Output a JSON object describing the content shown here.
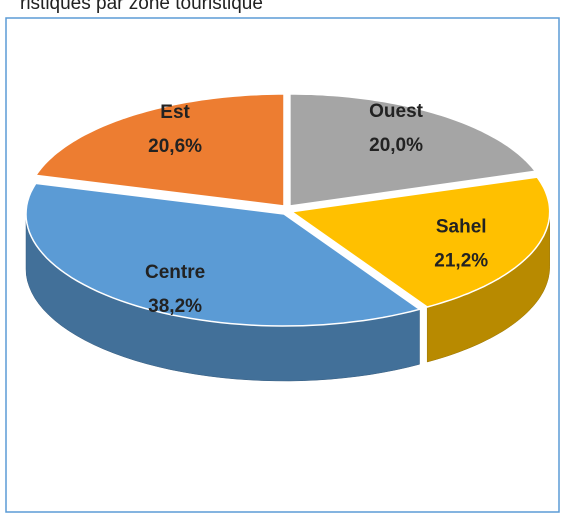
{
  "chart_data": {
    "type": "pie",
    "title": "ristiques par zone touristique",
    "categories": [
      "Ouest",
      "Sahel",
      "Centre",
      "Est"
    ],
    "values": [
      20.0,
      21.2,
      38.2,
      20.6
    ],
    "value_labels": [
      "20,0%",
      "21,2%",
      "38,2%",
      "20,6%"
    ],
    "colors": [
      "#a5a5a5",
      "#ffc000",
      "#5b9bd5",
      "#ed7d31"
    ]
  }
}
